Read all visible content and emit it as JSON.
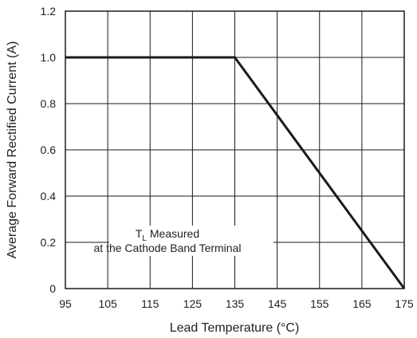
{
  "chart_data": {
    "type": "line",
    "xlabel": "Lead Temperature (°C)",
    "ylabel": "Average Forward Rectified Current (A)",
    "xlim": [
      95,
      175
    ],
    "ylim": [
      0,
      1.2
    ],
    "xticks": [
      "95",
      "105",
      "115",
      "125",
      "135",
      "145",
      "155",
      "165",
      "175"
    ],
    "yticks": [
      "0",
      "0.2",
      "0.4",
      "0.6",
      "0.8",
      "1.0",
      "1.2"
    ],
    "grid": true,
    "series": [
      {
        "x": [
          95,
          135,
          175
        ],
        "y": [
          1.0,
          1.0,
          0
        ]
      }
    ],
    "annotation": {
      "line1_main": "T",
      "line1_sub": "L",
      "line1_rest": " Measured",
      "line2": "at the Cathode Band Terminal"
    },
    "colors": {
      "line": "#1a1a1a",
      "grid": "#1a1a1a",
      "frame": "#1a1a1a"
    }
  }
}
